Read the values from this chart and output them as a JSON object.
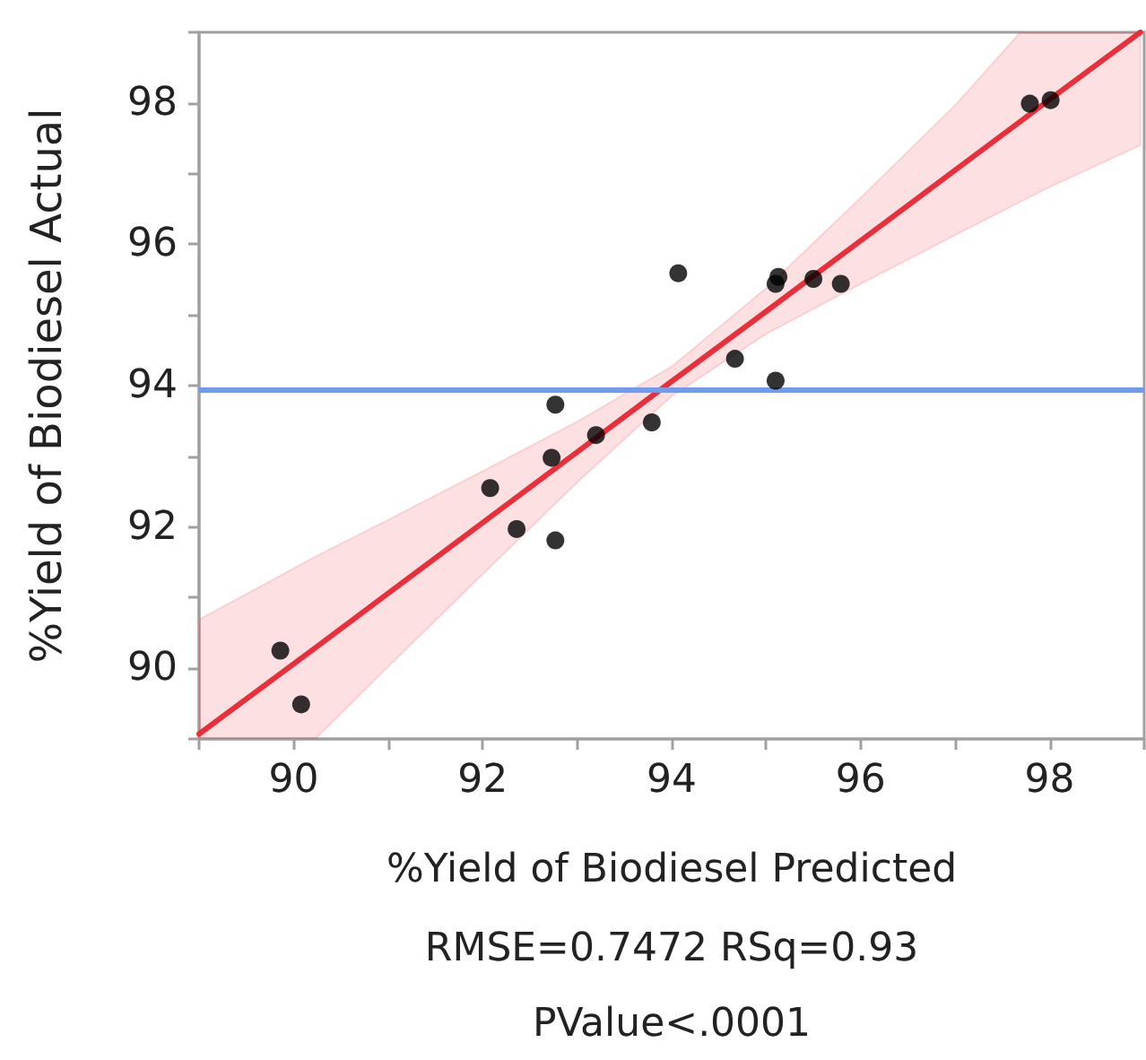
{
  "chart_data": {
    "type": "scatter",
    "xlabel": "%Yield of Biodiesel Predicted",
    "ylabel": "%Yield of Biodiesel Actual",
    "annotations": [
      "RMSE=0.7472 RSq=0.93",
      "PValue<.0001"
    ],
    "xlim": [
      89,
      99
    ],
    "ylim": [
      89,
      99
    ],
    "xticks": [
      {
        "value": 89,
        "label": null
      },
      90,
      {
        "value": 91,
        "label": null
      },
      92,
      {
        "value": 93,
        "label": null
      },
      94,
      {
        "value": 95,
        "label": null
      },
      96,
      {
        "value": 97,
        "label": null
      },
      98,
      {
        "value": 99,
        "label": null
      }
    ],
    "yticks": [
      {
        "value": 89,
        "label": null
      },
      90,
      {
        "value": 91,
        "label": null
      },
      92,
      {
        "value": 93,
        "label": null
      },
      94,
      {
        "value": 95,
        "label": null
      },
      96,
      {
        "value": 97,
        "label": null
      },
      98,
      {
        "value": 99,
        "label": null
      }
    ],
    "grid": false,
    "marker": "circle",
    "ref_lines": [
      {
        "axis": "y",
        "value": 93.95,
        "color": "#6f9cf0"
      }
    ],
    "series": [
      {
        "color": "#000000",
        "x": [
          89.86,
          90.08,
          92.08,
          92.36,
          92.73,
          92.77,
          92.77,
          93.2,
          93.79,
          94.07,
          94.67,
          95.1,
          95.1,
          95.13,
          95.5,
          95.79,
          97.79,
          98.01
        ],
        "values": [
          90.25,
          89.49,
          92.55,
          91.97,
          92.98,
          93.73,
          91.81,
          93.3,
          93.48,
          95.59,
          94.38,
          94.07,
          95.44,
          95.54,
          95.51,
          95.44,
          97.99,
          98.04
        ]
      },
      {
        "type": "line",
        "color": "#e8303c",
        "marker": "none",
        "line_style": "solid",
        "x": [
          89,
          90.23,
          91,
          92,
          93,
          94,
          95,
          96,
          97,
          97.69,
          98,
          98.96
        ],
        "values": [
          89.07,
          90.29,
          91.06,
          92.06,
          93.06,
          94.06,
          95.05,
          96.05,
          97.05,
          97.74,
          98.05,
          99
        ],
        "lower": [
          89,
          89,
          90.02,
          91.33,
          92.63,
          93.85,
          94.73,
          95.44,
          96.13,
          96.6,
          96.81,
          97.4
        ],
        "upper": [
          90.69,
          91.58,
          92.1,
          92.79,
          93.49,
          94.27,
          95.38,
          96.66,
          97.97,
          99,
          99,
          99
        ]
      }
    ]
  }
}
